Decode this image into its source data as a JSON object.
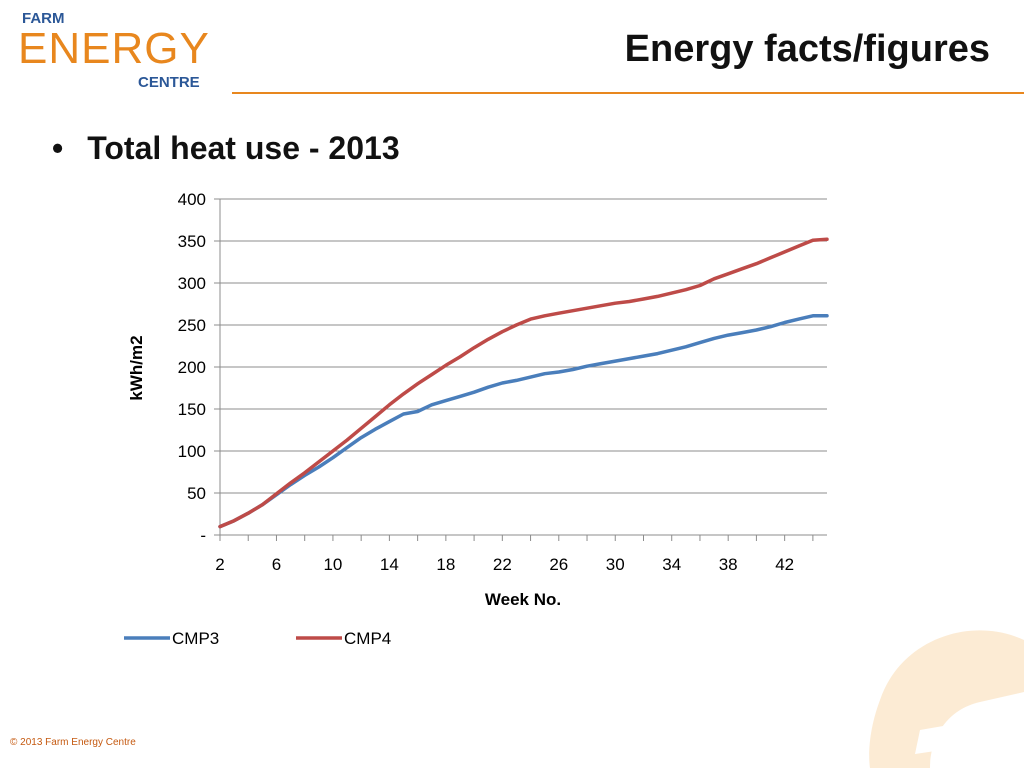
{
  "logo": {
    "line1": "FARM",
    "line2": "ENERGY",
    "line3": "CENTRE"
  },
  "title": "Energy facts/figures",
  "bullet": "Total heat use - 2013",
  "footer": "© 2013 Farm Energy Centre",
  "colors": {
    "accent": "#e8871e",
    "brand_blue": "#2b5797",
    "series1": "#4a7ebb",
    "series2": "#be4b48"
  },
  "chart_data": {
    "type": "line",
    "title": "",
    "xlabel": "Week No.",
    "ylabel": "kWh/m2",
    "xlim": [
      2,
      45
    ],
    "ylim": [
      0,
      400
    ],
    "x_ticks": [
      2,
      6,
      10,
      14,
      18,
      22,
      26,
      30,
      34,
      38,
      42
    ],
    "y_ticks": [
      0,
      50,
      100,
      150,
      200,
      250,
      300,
      350,
      400
    ],
    "y_tick_labels": [
      "-",
      "50",
      "100",
      "150",
      "200",
      "250",
      "300",
      "350",
      "400"
    ],
    "grid": "horizontal",
    "legend_position": "bottom-left",
    "x": [
      2,
      3,
      4,
      5,
      6,
      7,
      8,
      9,
      10,
      11,
      12,
      13,
      14,
      15,
      16,
      17,
      18,
      19,
      20,
      21,
      22,
      23,
      24,
      25,
      26,
      27,
      28,
      29,
      30,
      31,
      32,
      33,
      34,
      35,
      36,
      37,
      38,
      39,
      40,
      41,
      42,
      43,
      44,
      45
    ],
    "series": [
      {
        "name": "CMP3",
        "color": "#4a7ebb",
        "values": [
          10,
          17,
          26,
          36,
          48,
          60,
          71,
          81,
          92,
          104,
          116,
          126,
          135,
          144,
          147,
          155,
          160,
          165,
          170,
          176,
          181,
          184,
          188,
          192,
          194,
          197,
          201,
          204,
          207,
          210,
          213,
          216,
          220,
          224,
          229,
          234,
          238,
          241,
          244,
          248,
          253,
          257,
          261,
          261
        ]
      },
      {
        "name": "CMP4",
        "color": "#be4b48",
        "values": [
          10,
          17,
          26,
          36,
          49,
          62,
          74,
          87,
          100,
          113,
          127,
          141,
          155,
          168,
          180,
          191,
          202,
          212,
          223,
          233,
          242,
          250,
          257,
          261,
          264,
          267,
          270,
          273,
          276,
          278,
          281,
          284,
          288,
          292,
          297,
          305,
          311,
          317,
          323,
          330,
          337,
          344,
          351,
          352
        ]
      }
    ]
  }
}
